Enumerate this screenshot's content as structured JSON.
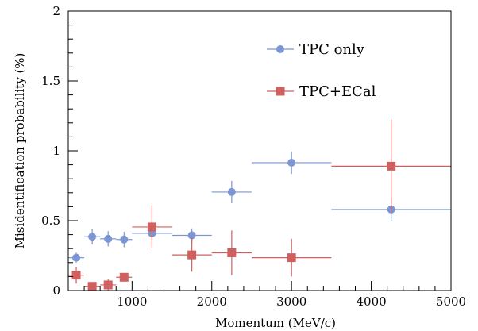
{
  "chart_data": {
    "type": "scatter",
    "xlabel": "Momentum (MeV/c)",
    "ylabel": "Misidentification probability (%)",
    "xlim": [
      200,
      5000
    ],
    "ylim": [
      0,
      2
    ],
    "x_ticks": [
      1000,
      2000,
      3000,
      4000,
      5000
    ],
    "y_ticks": [
      0,
      0.5,
      1,
      1.5,
      2
    ],
    "x_tick_labels": [
      "1000",
      "2000",
      "3000",
      "4000",
      "5000"
    ],
    "y_tick_labels": [
      "0",
      "0.5",
      "1",
      "1.5",
      "2"
    ],
    "grid": false,
    "legend_position": "top-right",
    "series": [
      {
        "name": "TPC only",
        "marker": "circle",
        "color": "#7b96d3",
        "points": [
          {
            "x": 300,
            "x_low": 200,
            "x_high": 400,
            "y": 0.235,
            "y_err": 0.035
          },
          {
            "x": 500,
            "x_low": 400,
            "x_high": 600,
            "y": 0.385,
            "y_err": 0.055
          },
          {
            "x": 700,
            "x_low": 600,
            "x_high": 800,
            "y": 0.37,
            "y_err": 0.055
          },
          {
            "x": 900,
            "x_low": 800,
            "x_high": 1000,
            "y": 0.365,
            "y_err": 0.055
          },
          {
            "x": 1250,
            "x_low": 1000,
            "x_high": 1500,
            "y": 0.41,
            "y_err": 0.055
          },
          {
            "x": 1750,
            "x_low": 1500,
            "x_high": 2000,
            "y": 0.395,
            "y_err": 0.05
          },
          {
            "x": 2250,
            "x_low": 2000,
            "x_high": 2500,
            "y": 0.705,
            "y_err": 0.08
          },
          {
            "x": 3000,
            "x_low": 2500,
            "x_high": 3500,
            "y": 0.915,
            "y_err": 0.08
          },
          {
            "x": 4250,
            "x_low": 3500,
            "x_high": 5000,
            "y": 0.58,
            "y_err": 0.085
          }
        ]
      },
      {
        "name": "TPC+ECal",
        "marker": "square",
        "color": "#d05f5f",
        "points": [
          {
            "x": 300,
            "x_low": 200,
            "x_high": 400,
            "y": 0.11,
            "y_err": 0.06
          },
          {
            "x": 500,
            "x_low": 400,
            "x_high": 600,
            "y": 0.03,
            "y_err": 0.03
          },
          {
            "x": 700,
            "x_low": 600,
            "x_high": 800,
            "y": 0.04,
            "y_err": 0.04
          },
          {
            "x": 900,
            "x_low": 800,
            "x_high": 1000,
            "y": 0.095,
            "y_err": 0.03
          },
          {
            "x": 1250,
            "x_low": 1000,
            "x_high": 1500,
            "y": 0.455,
            "y_err": 0.155
          },
          {
            "x": 1750,
            "x_low": 1500,
            "x_high": 2000,
            "y": 0.255,
            "y_err": 0.12
          },
          {
            "x": 2250,
            "x_low": 2000,
            "x_high": 2500,
            "y": 0.27,
            "y_err": 0.16
          },
          {
            "x": 3000,
            "x_low": 2500,
            "x_high": 3500,
            "y": 0.235,
            "y_err": 0.135
          },
          {
            "x": 4250,
            "x_low": 3500,
            "x_high": 5000,
            "y": 0.89,
            "y_err": 0.335
          }
        ]
      }
    ]
  }
}
